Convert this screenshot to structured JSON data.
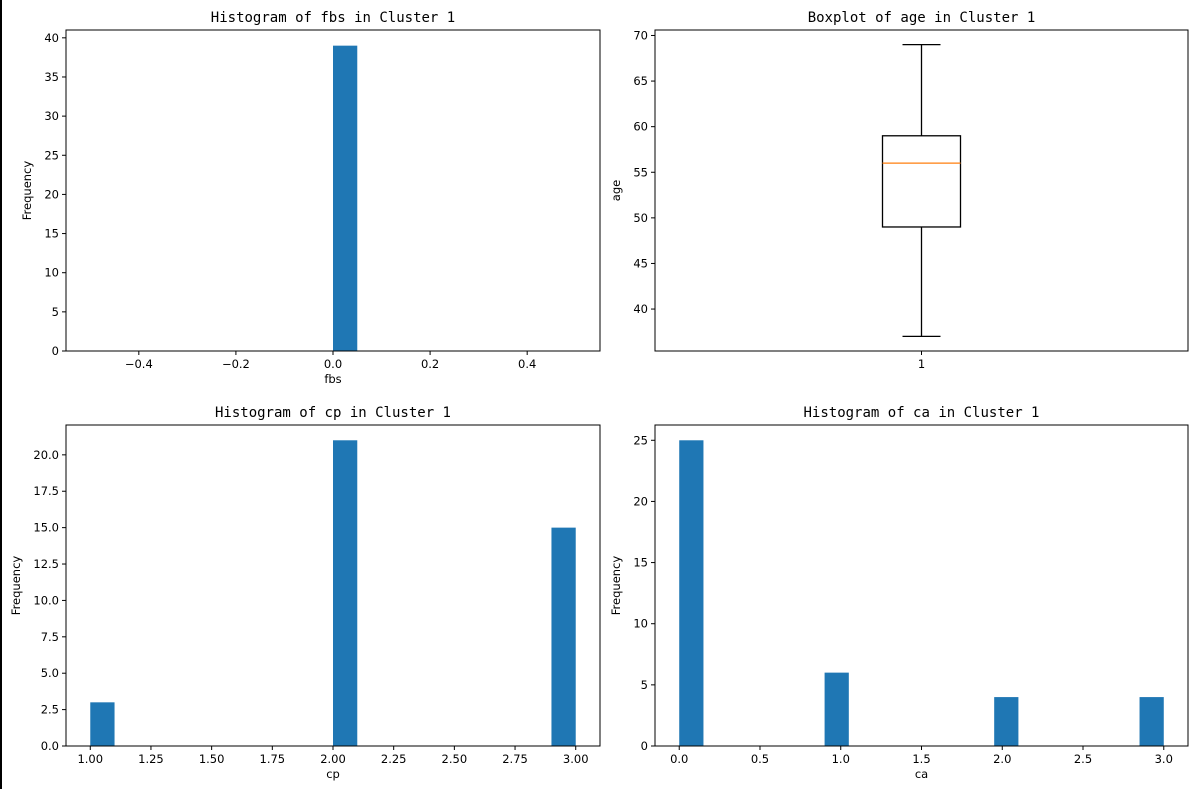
{
  "chart_data": [
    {
      "id": "fbs",
      "type": "bar",
      "title": "Histogram of fbs in Cluster 1",
      "xlabel": "fbs",
      "ylabel": "Frequency",
      "xlim": [
        -0.55,
        0.55
      ],
      "ylim": [
        0,
        41
      ],
      "xticks": [
        -0.4,
        -0.2,
        0.0,
        0.2,
        0.4
      ],
      "xtick_labels": [
        "−0.4",
        "−0.2",
        "0.0",
        "0.2",
        "0.4"
      ],
      "yticks": [
        0,
        5,
        10,
        15,
        20,
        25,
        30,
        35,
        40
      ],
      "ytick_labels": [
        "0",
        "5",
        "10",
        "15",
        "20",
        "25",
        "30",
        "35",
        "40"
      ],
      "bars": [
        {
          "x0": 0.0,
          "x1": 0.05,
          "value": 39
        }
      ],
      "color": "#1f77b4"
    },
    {
      "id": "age",
      "type": "boxplot",
      "title": "Boxplot of age in Cluster 1",
      "xlabel": "",
      "ylabel": "age",
      "xlim": [
        0.5,
        1.5
      ],
      "ylim": [
        35.4,
        70.6
      ],
      "xticks": [
        1
      ],
      "xtick_labels": [
        "1"
      ],
      "yticks": [
        40,
        45,
        50,
        55,
        60,
        65,
        70
      ],
      "ytick_labels": [
        "40",
        "45",
        "50",
        "55",
        "60",
        "65",
        "70"
      ],
      "box": {
        "position": 1,
        "whislo": 37,
        "q1": 49,
        "median": 56,
        "q3": 59,
        "whishi": 69
      },
      "median_color": "#ff7f0e"
    },
    {
      "id": "cp",
      "type": "bar",
      "title": "Histogram of cp in Cluster 1",
      "xlabel": "cp",
      "ylabel": "Frequency",
      "xlim": [
        0.9,
        3.1
      ],
      "ylim": [
        0,
        22.05
      ],
      "xticks": [
        1.0,
        1.25,
        1.5,
        1.75,
        2.0,
        2.25,
        2.5,
        2.75,
        3.0
      ],
      "xtick_labels": [
        "1.00",
        "1.25",
        "1.50",
        "1.75",
        "2.00",
        "2.25",
        "2.50",
        "2.75",
        "3.00"
      ],
      "yticks": [
        0,
        2.5,
        5,
        7.5,
        10,
        12.5,
        15,
        17.5,
        20
      ],
      "ytick_labels": [
        "0.0",
        "2.5",
        "5.0",
        "7.5",
        "10.0",
        "12.5",
        "15.0",
        "17.5",
        "20.0"
      ],
      "bars": [
        {
          "x0": 1.0,
          "x1": 1.1,
          "value": 3
        },
        {
          "x0": 2.0,
          "x1": 2.1,
          "value": 21
        },
        {
          "x0": 2.9,
          "x1": 3.0,
          "value": 15
        }
      ],
      "color": "#1f77b4"
    },
    {
      "id": "ca",
      "type": "bar",
      "title": "Histogram of ca in Cluster 1",
      "xlabel": "ca",
      "ylabel": "Frequency",
      "xlim": [
        -0.15,
        3.15
      ],
      "ylim": [
        0,
        26.25
      ],
      "xticks": [
        0,
        0.5,
        1,
        1.5,
        2,
        2.5,
        3
      ],
      "xtick_labels": [
        "0.0",
        "0.5",
        "1.0",
        "1.5",
        "2.0",
        "2.5",
        "3.0"
      ],
      "yticks": [
        0,
        5,
        10,
        15,
        20,
        25
      ],
      "ytick_labels": [
        "0",
        "5",
        "10",
        "15",
        "20",
        "25"
      ],
      "bars": [
        {
          "x0": 0.0,
          "x1": 0.15,
          "value": 25
        },
        {
          "x0": 0.9,
          "x1": 1.05,
          "value": 6
        },
        {
          "x0": 1.95,
          "x1": 2.1,
          "value": 4
        },
        {
          "x0": 2.85,
          "x1": 3.0,
          "value": 4
        }
      ],
      "color": "#1f77b4"
    }
  ]
}
